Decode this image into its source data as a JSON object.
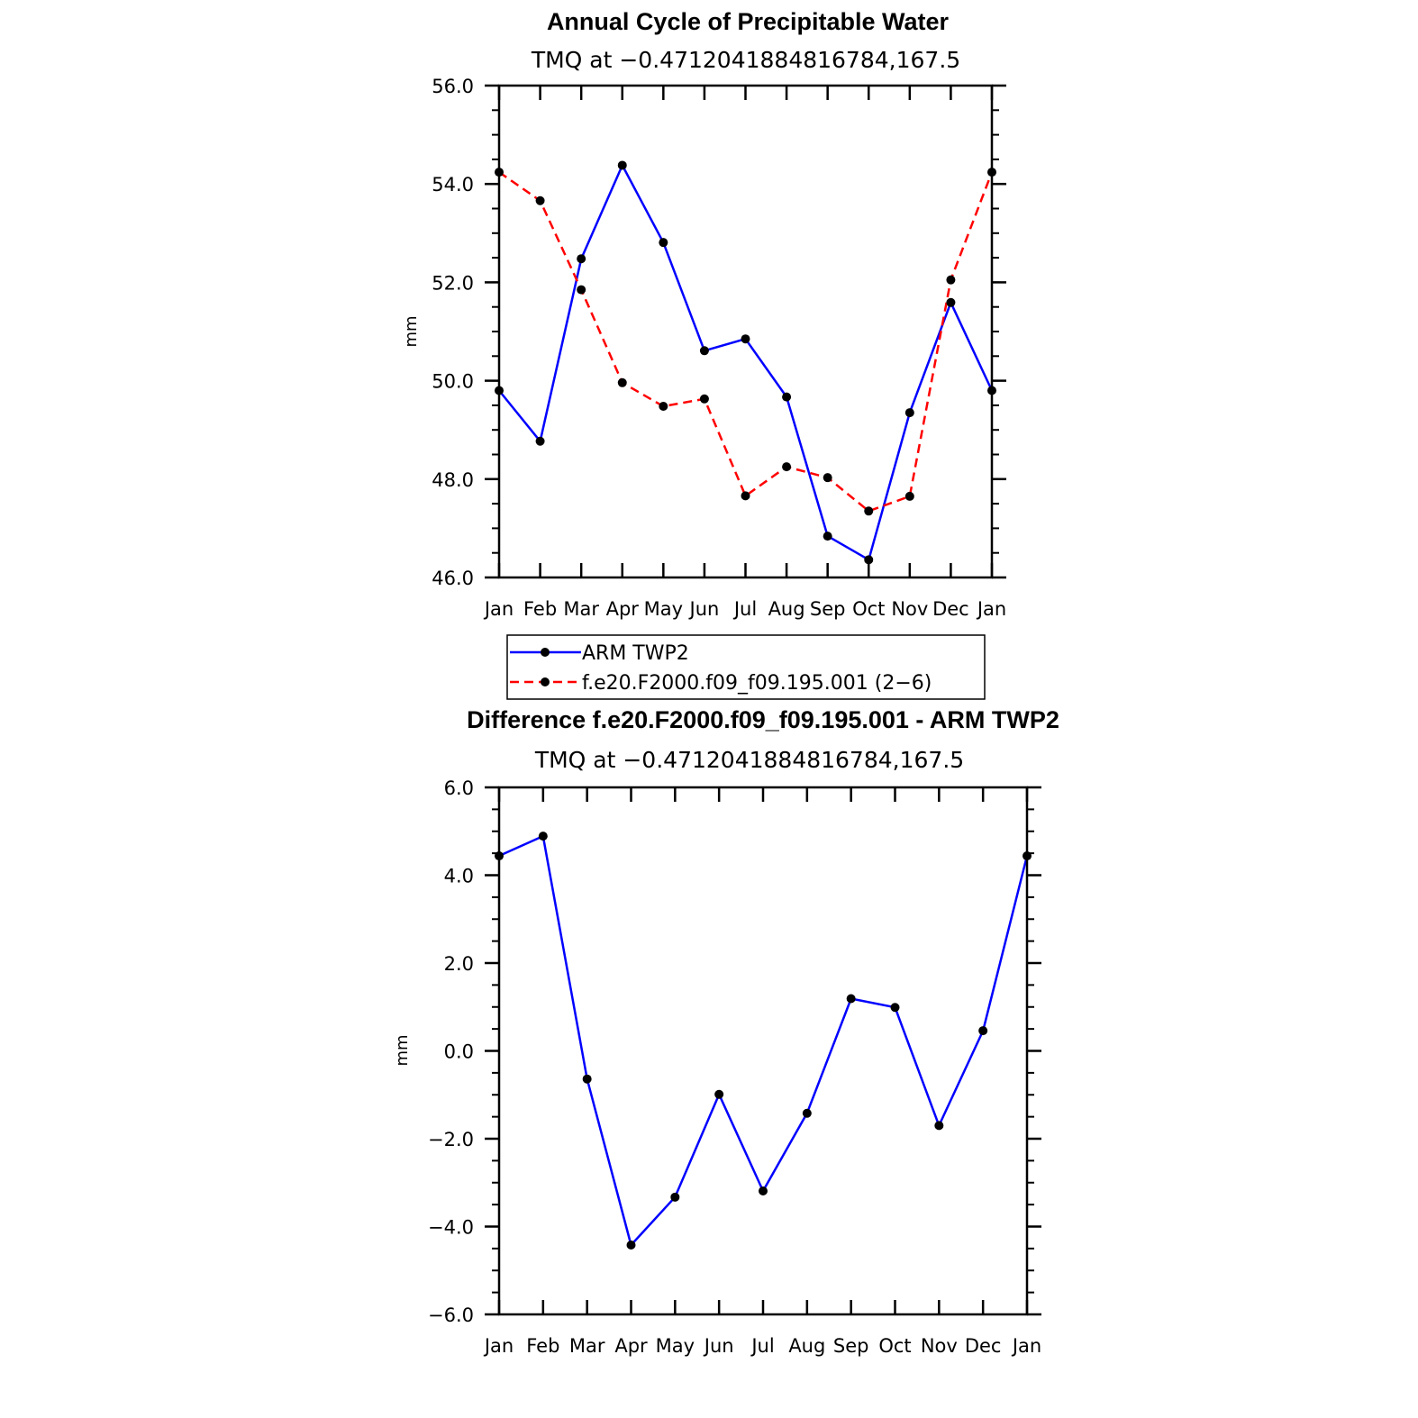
{
  "chart_data": [
    {
      "type": "line",
      "title": "Annual Cycle of Precipitable Water",
      "subtitle": "TMQ at −0.4712041884816784,167.5",
      "xlabel": "",
      "ylabel": "mm",
      "categories": [
        "Jan",
        "Feb",
        "Mar",
        "Apr",
        "May",
        "Jun",
        "Jul",
        "Aug",
        "Sep",
        "Oct",
        "Nov",
        "Dec",
        "Jan"
      ],
      "ylim": [
        46.0,
        56.0
      ],
      "yticks": [
        46.0,
        48.0,
        50.0,
        52.0,
        54.0,
        56.0
      ],
      "ytick_labels": [
        "46.0",
        "48.0",
        "50.0",
        "52.0",
        "54.0",
        "56.0"
      ],
      "series": [
        {
          "name": "ARM  TWP2",
          "color": "#0000ff",
          "dash": "solid",
          "values": [
            49.8,
            48.77,
            52.48,
            54.38,
            52.81,
            50.61,
            50.85,
            49.67,
            46.84,
            46.36,
            49.35,
            51.59,
            49.8
          ]
        },
        {
          "name": "f.e20.F2000.f09_f09.195.001  (2−6)",
          "color": "#ff0000",
          "dash": "dashed",
          "values": [
            54.24,
            53.66,
            51.85,
            49.96,
            49.48,
            49.63,
            47.66,
            48.25,
            48.03,
            47.35,
            47.65,
            52.05,
            54.24
          ]
        }
      ],
      "legend": "below"
    },
    {
      "type": "line",
      "title": "Difference f.e20.F2000.f09_f09.195.001 - ARM TWP2",
      "subtitle": "TMQ at −0.4712041884816784,167.5",
      "xlabel": "",
      "ylabel": "mm",
      "categories": [
        "Jan",
        "Feb",
        "Mar",
        "Apr",
        "May",
        "Jun",
        "Jul",
        "Aug",
        "Sep",
        "Oct",
        "Nov",
        "Dec",
        "Jan"
      ],
      "ylim": [
        -6.0,
        6.0
      ],
      "yticks": [
        -6.0,
        -4.0,
        -2.0,
        0.0,
        2.0,
        4.0,
        6.0
      ],
      "ytick_labels": [
        "−6.0",
        "−4.0",
        "−2.0",
        "0.0",
        "2.0",
        "4.0",
        "6.0"
      ],
      "series": [
        {
          "name": "Difference",
          "color": "#0000ff",
          "dash": "solid",
          "values": [
            4.44,
            4.89,
            -0.64,
            -4.42,
            -3.33,
            -0.99,
            -3.19,
            -1.42,
            1.19,
            0.99,
            -1.7,
            0.46,
            4.44
          ]
        }
      ]
    }
  ]
}
